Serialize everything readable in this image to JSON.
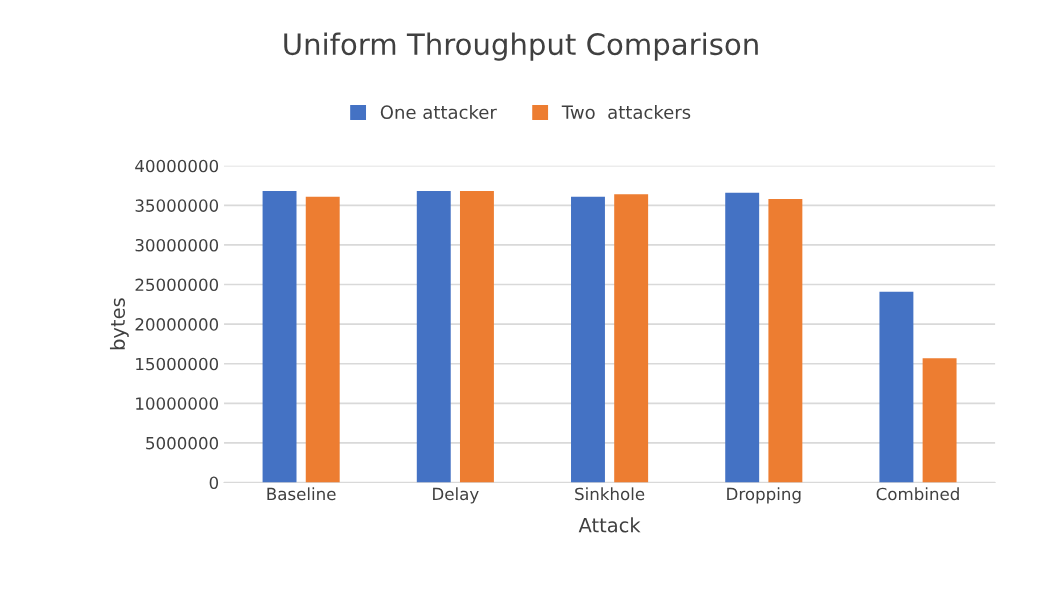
{
  "chart_data": {
    "type": "bar",
    "title": "Uniform Throughput Comparison",
    "xlabel": "Attack",
    "ylabel": "bytes",
    "categories": [
      "Baseline",
      "Delay",
      "Sinkhole",
      "Dropping",
      "Combined"
    ],
    "series": [
      {
        "name": "One attacker",
        "color": "#4472c4",
        "values": [
          36800000,
          36800000,
          36100000,
          36600000,
          24100000
        ]
      },
      {
        "name": "Two  attackers",
        "color": "#ed7d31",
        "values": [
          36100000,
          36800000,
          36400000,
          35800000,
          15700000
        ]
      }
    ],
    "ylim": [
      0,
      40000000
    ],
    "yticks": [
      0,
      5000000,
      10000000,
      15000000,
      20000000,
      25000000,
      30000000,
      35000000,
      40000000
    ],
    "grid": "y",
    "legend": "top"
  }
}
